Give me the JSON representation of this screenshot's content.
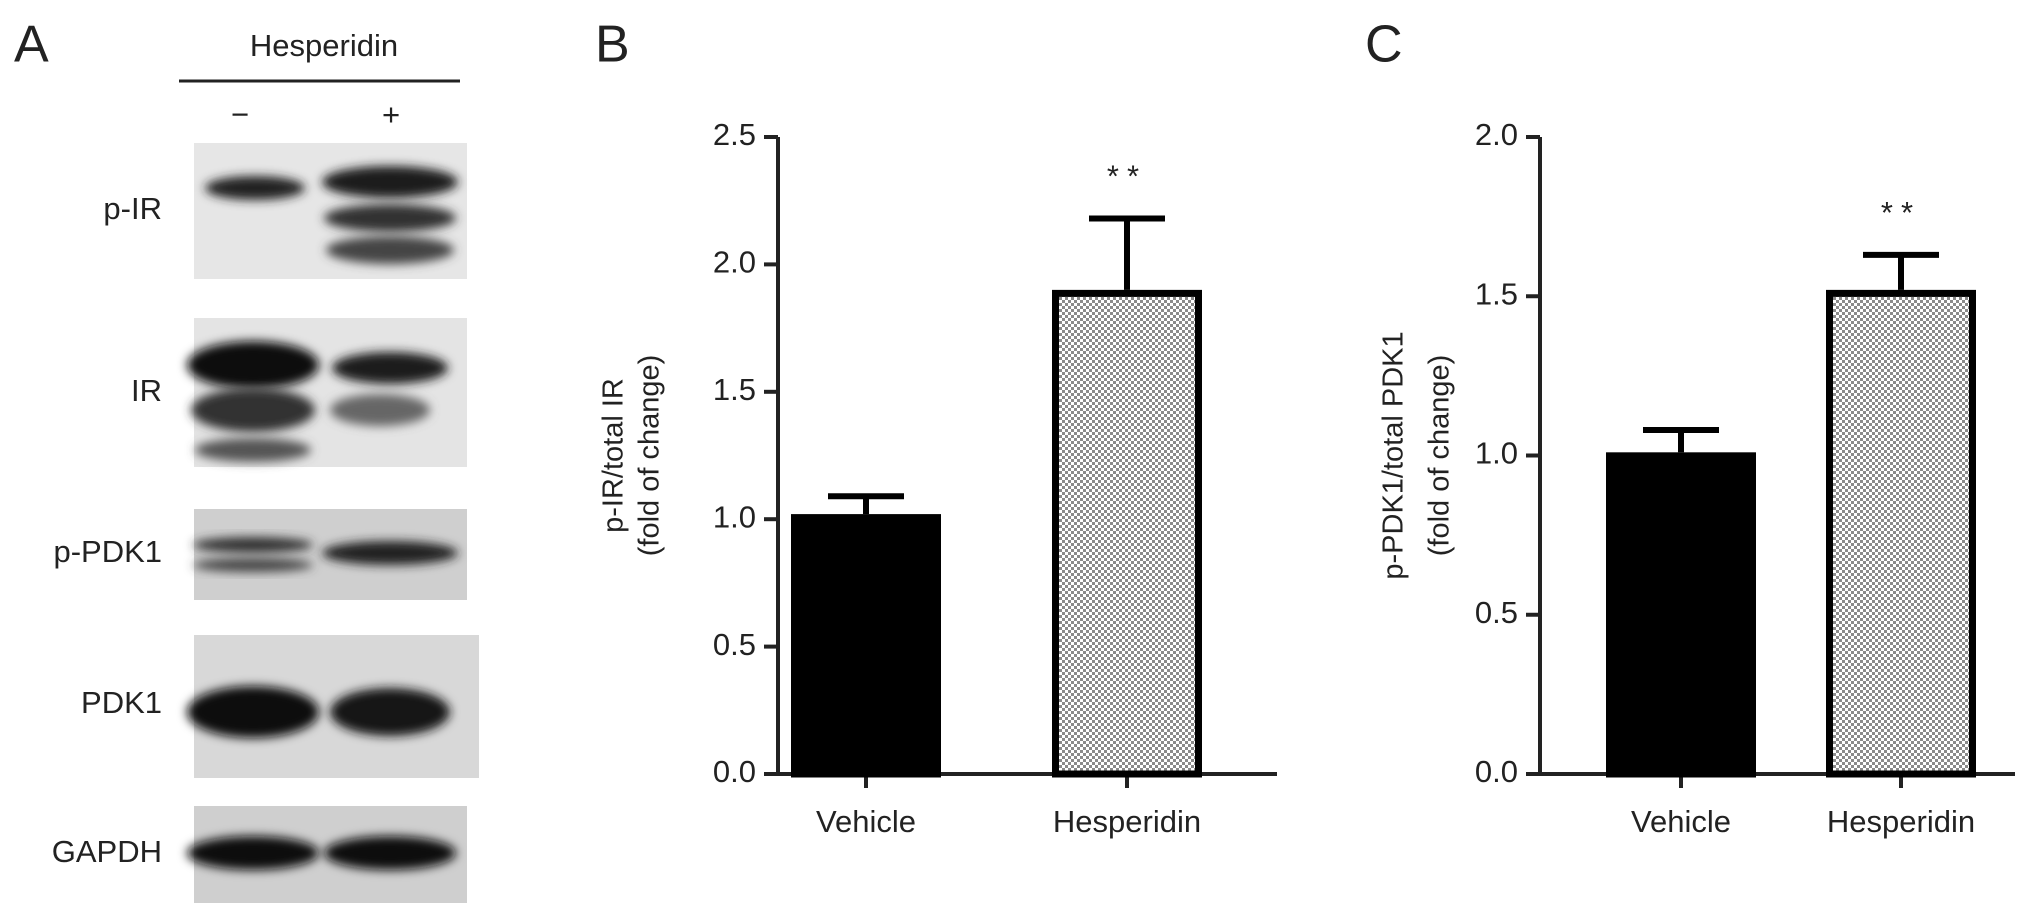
{
  "panel_labels": [
    "A",
    "B",
    "C"
  ],
  "blot": {
    "treatment": "Hesperidin",
    "lanes": [
      "−",
      "+"
    ],
    "bands": [
      "p-IR",
      "IR",
      "p-PDK1",
      "PDK1",
      "GAPDH"
    ]
  },
  "chart_data": [
    {
      "type": "bar",
      "ylabel": [
        "p-IR/total IR",
        "(fold of change)"
      ],
      "categories": [
        "Vehicle",
        "Hesperidin"
      ],
      "values": [
        1.02,
        1.9
      ],
      "errors": [
        0.07,
        0.28
      ],
      "colors": [
        "#000000",
        "#8a8a8a"
      ],
      "patterns": [
        "solid",
        "checker"
      ],
      "annotation": "**",
      "ylim": [
        0,
        2.5
      ],
      "yticks": [
        {
          "value": 0,
          "label": "0.0"
        },
        0.5,
        {
          "value": 1,
          "label": "1.0"
        },
        1.5,
        {
          "value": 2,
          "label": "2.0"
        },
        2.5
      ]
    },
    {
      "type": "bar",
      "ylabel": [
        "p-PDK1/total PDK1",
        "(fold of change)"
      ],
      "categories": [
        "Vehicle",
        "Hesperidin"
      ],
      "values": [
        1.01,
        1.52
      ],
      "errors": [
        0.07,
        0.11
      ],
      "colors": [
        "#000000",
        "#8a8a8a"
      ],
      "patterns": [
        "solid",
        "checker"
      ],
      "annotation": "**",
      "ylim": [
        0,
        2.0
      ],
      "yticks": [
        {
          "value": 0,
          "label": "0.0"
        },
        0.5,
        {
          "value": 1,
          "label": "1.0"
        },
        1.5,
        {
          "value": 2,
          "label": "2.0"
        }
      ]
    }
  ]
}
